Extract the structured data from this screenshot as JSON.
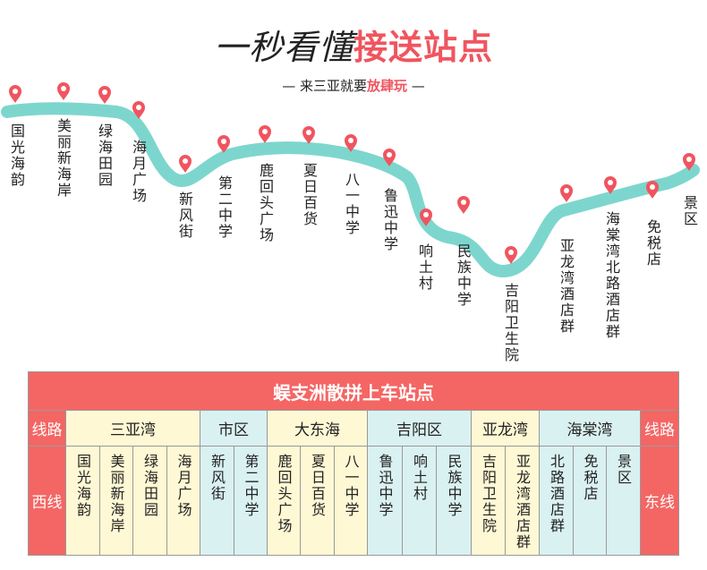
{
  "header": {
    "title_part1": "一秒看懂",
    "title_part2": "接送站点",
    "subtitle_prefix": "— 来三亚就要",
    "subtitle_highlight": "放肆玩",
    "subtitle_suffix": " —"
  },
  "route": {
    "stops": [
      "国光海韵",
      "美丽新海岸",
      "绿海田园",
      "海月广场",
      "新风街",
      "第二中学",
      "鹿回头广场",
      "夏日百货",
      "八一中学",
      "鲁迅中学",
      "响土村",
      "民族中学",
      "吉阳卫生院",
      "亚龙湾酒店群",
      "海棠湾北路酒店群",
      "免税店",
      "景区"
    ]
  },
  "table": {
    "title": "蜈支洲散拼上车站点",
    "route_label_left": "线路",
    "route_label_right": "线路",
    "west_label": "西线",
    "east_label": "东线",
    "regions": [
      {
        "name": "三亚湾",
        "stops": [
          "国光海韵",
          "美丽新海岸",
          "绿海田园",
          "海月广场"
        ]
      },
      {
        "name": "市区",
        "stops": [
          "新风街",
          "第二中学"
        ]
      },
      {
        "name": "大东海",
        "stops": [
          "鹿回头广场",
          "夏日百货",
          "八一中学"
        ]
      },
      {
        "name": "吉阳区",
        "stops": [
          "鲁迅中学",
          "响土村",
          "民族中学"
        ]
      },
      {
        "name": "亚龙湾",
        "stops": [
          "吉阳卫生院",
          "亚龙湾酒店群"
        ]
      },
      {
        "name": "海棠湾",
        "stops": [
          "北路酒店群",
          "免税店",
          "景区"
        ]
      }
    ]
  },
  "colors": {
    "accent_red": "#f0555f",
    "route_teal": "#7dd6cd",
    "header_red": "#f46664",
    "cell_yellow": "#fff8d4",
    "cell_cyan": "#daf1f1"
  }
}
